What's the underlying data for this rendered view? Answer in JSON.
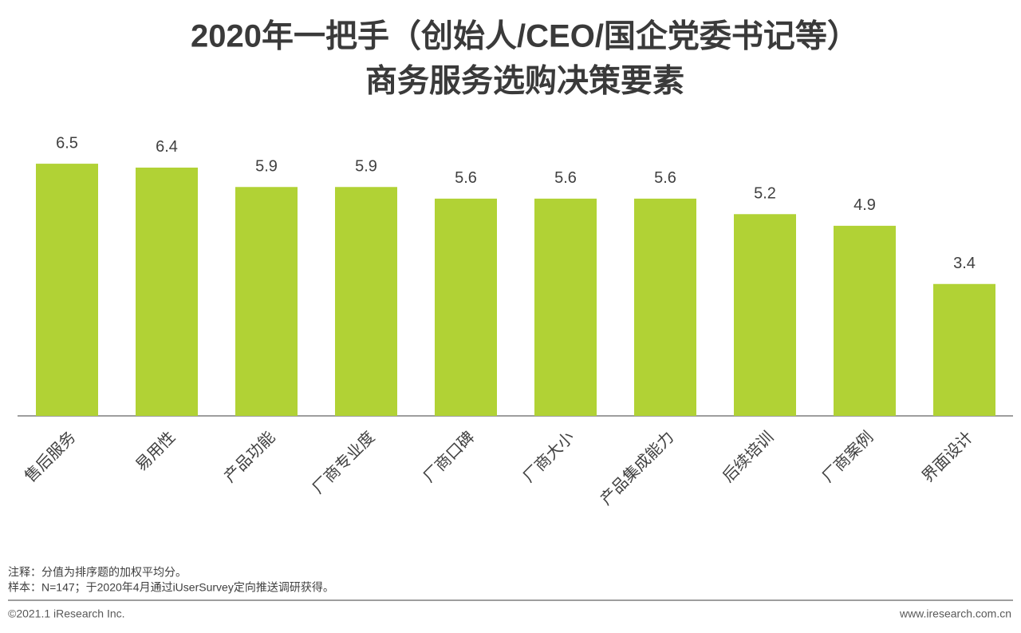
{
  "chart_data": {
    "type": "bar",
    "title": [
      "2020年一把手（创始人/CEO/国企党委书记等）",
      "商务服务选购决策要素"
    ],
    "categories": [
      "售后服务",
      "易用性",
      "产品功能",
      "厂商专业度",
      "厂商口碑",
      "厂商大小",
      "产品集成能力",
      "后续培训",
      "厂商案例",
      "界面设计"
    ],
    "values": [
      6.5,
      6.4,
      5.9,
      5.9,
      5.6,
      5.6,
      5.6,
      5.2,
      4.9,
      3.4
    ],
    "color": "#b1d235"
  },
  "notes": [
    "注释：分值为排序题的加权平均分。",
    "样本：N=147；于2020年4月通过iUserSurvey定向推送调研获得。"
  ],
  "footer": {
    "left": "©2021.1 iResearch Inc.",
    "right": "www.iresearch.com.cn"
  }
}
